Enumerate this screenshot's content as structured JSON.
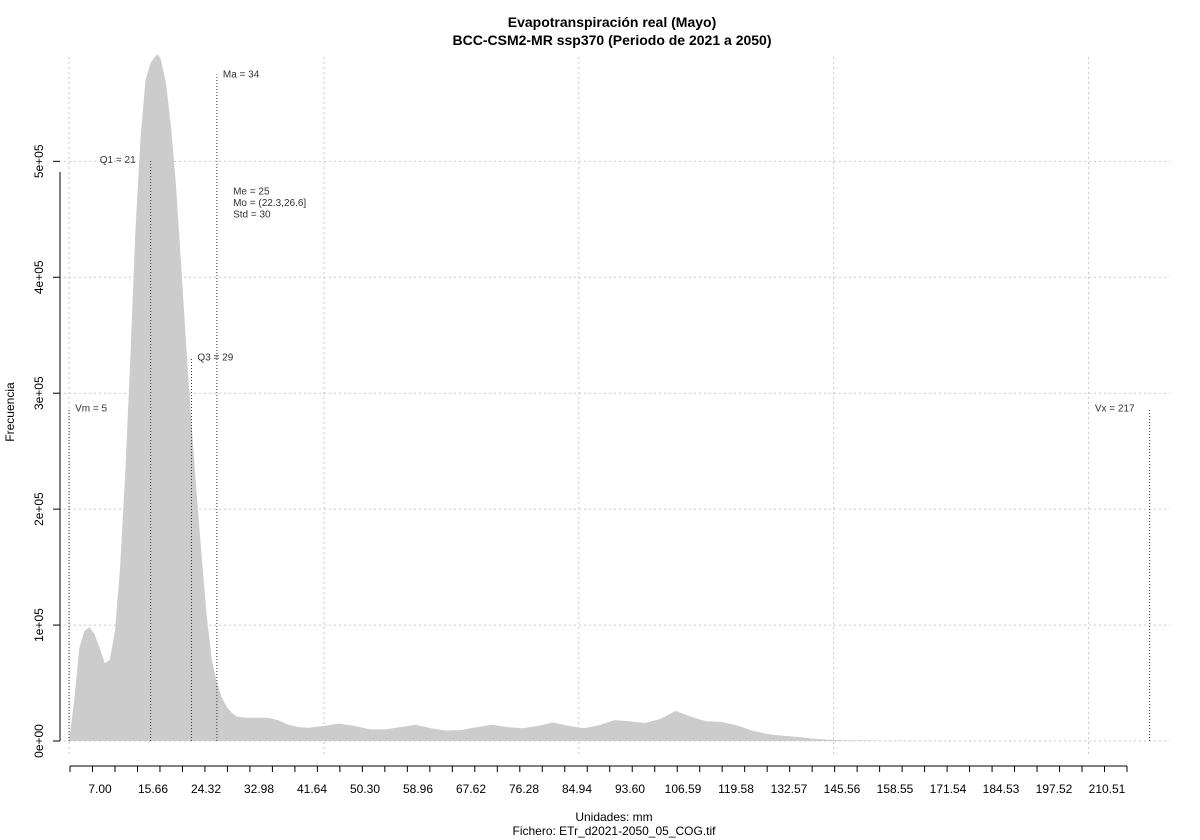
{
  "chart_data": {
    "type": "area",
    "title": "Evapotranspiración real (Mayo)",
    "subtitle": "BCC-CSM2-MR ssp370 (Periodo de 2021 a 2050)",
    "xlabel": "Unidades: mm",
    "ylabel": "Frecuencia",
    "caption": "Fichero: ETr_d2021-2050_05_COG.tif",
    "xlim": [
      4,
      221
    ],
    "ylim": [
      0,
      590000
    ],
    "x_ticks": [
      "7.00",
      "15.66",
      "24.32",
      "32.98",
      "41.64",
      "50.30",
      "58.96",
      "67.62",
      "76.28",
      "84.94",
      "93.60",
      "106.59",
      "119.58",
      "132.57",
      "145.56",
      "158.55",
      "171.54",
      "184.53",
      "197.52",
      "210.51"
    ],
    "y_ticks": [
      {
        "value": 0,
        "label": "0e+00"
      },
      {
        "value": 100000,
        "label": "1e+05"
      },
      {
        "value": 200000,
        "label": "2e+05"
      },
      {
        "value": 300000,
        "label": "3e+05"
      },
      {
        "value": 400000,
        "label": "4e+05"
      },
      {
        "value": 500000,
        "label": "5e+05"
      }
    ],
    "x_gridlines": [
      5,
      55,
      105,
      155,
      205
    ],
    "y_gridlines": [
      0,
      100000,
      200000,
      300000,
      400000,
      500000
    ],
    "grid": true,
    "fill_color": "#cccccc",
    "series": [
      {
        "x": [
          5,
          6,
          7,
          8,
          9,
          10,
          11,
          12,
          13,
          14,
          15,
          16,
          17,
          18,
          19,
          20,
          21,
          22,
          22.5,
          23,
          24,
          25,
          26,
          27,
          28,
          29,
          30,
          31,
          32,
          33,
          34,
          35,
          36,
          37,
          38,
          40,
          42,
          44,
          46,
          48,
          50,
          52,
          55,
          58,
          61,
          64,
          67,
          70,
          73,
          76,
          79,
          82,
          85,
          88,
          91,
          94,
          97,
          100,
          103,
          106,
          109,
          112,
          115,
          118,
          121,
          124,
          127,
          130,
          133,
          136,
          139,
          142,
          145,
          148,
          151,
          154,
          157,
          160,
          165,
          170,
          180,
          190,
          200,
          210,
          217
        ],
        "values": [
          0,
          35000,
          80000,
          95000,
          98000,
          92000,
          80000,
          67000,
          70000,
          95000,
          150000,
          230000,
          330000,
          440000,
          520000,
          570000,
          585000,
          591000,
          592000,
          588000,
          568000,
          530000,
          478000,
          410000,
          340000,
          275000,
          215000,
          160000,
          108000,
          70000,
          50000,
          37000,
          29000,
          24000,
          21000,
          20000,
          20000,
          20000,
          18000,
          14000,
          12000,
          11500,
          13000,
          15000,
          13000,
          10000,
          10000,
          12000,
          14000,
          11000,
          9000,
          9500,
          12000,
          14000,
          12000,
          11000,
          13000,
          16000,
          13000,
          11000,
          13500,
          18000,
          17000,
          15500,
          19000,
          26000,
          21000,
          17000,
          16500,
          13500,
          9000,
          6000,
          4500,
          3500,
          2000,
          1000,
          700,
          500,
          300,
          200,
          100,
          60,
          30,
          10,
          0
        ]
      }
    ],
    "annotations": [
      {
        "label": "Vm = 5",
        "x": 5,
        "y": 287000,
        "line": true,
        "line_top": 287000,
        "anchor": "start"
      },
      {
        "label": "Q1 = 21",
        "x": 21,
        "y": 501000,
        "line": true,
        "line_top": 501000,
        "anchor": "end"
      },
      {
        "label": "Q3 = 29",
        "x": 29,
        "y": 331000,
        "line": true,
        "line_top": 331000,
        "anchor": "start"
      },
      {
        "label": "Ma = 34",
        "x": 34,
        "y": 575000,
        "line": true,
        "line_top": 575000,
        "anchor": "start"
      },
      {
        "label": "Me = 25",
        "x": 36,
        "y": 474000,
        "line": false,
        "anchor": "start"
      },
      {
        "label": "Mo = (22.3,26.6]",
        "x": 36,
        "y": 464000,
        "line": false,
        "anchor": "start"
      },
      {
        "label": "Std = 30",
        "x": 36,
        "y": 454000,
        "line": false,
        "anchor": "start"
      },
      {
        "label": "Vx = 217",
        "x": 217,
        "y": 287000,
        "line": true,
        "line_top": 287000,
        "anchor": "end"
      }
    ]
  }
}
